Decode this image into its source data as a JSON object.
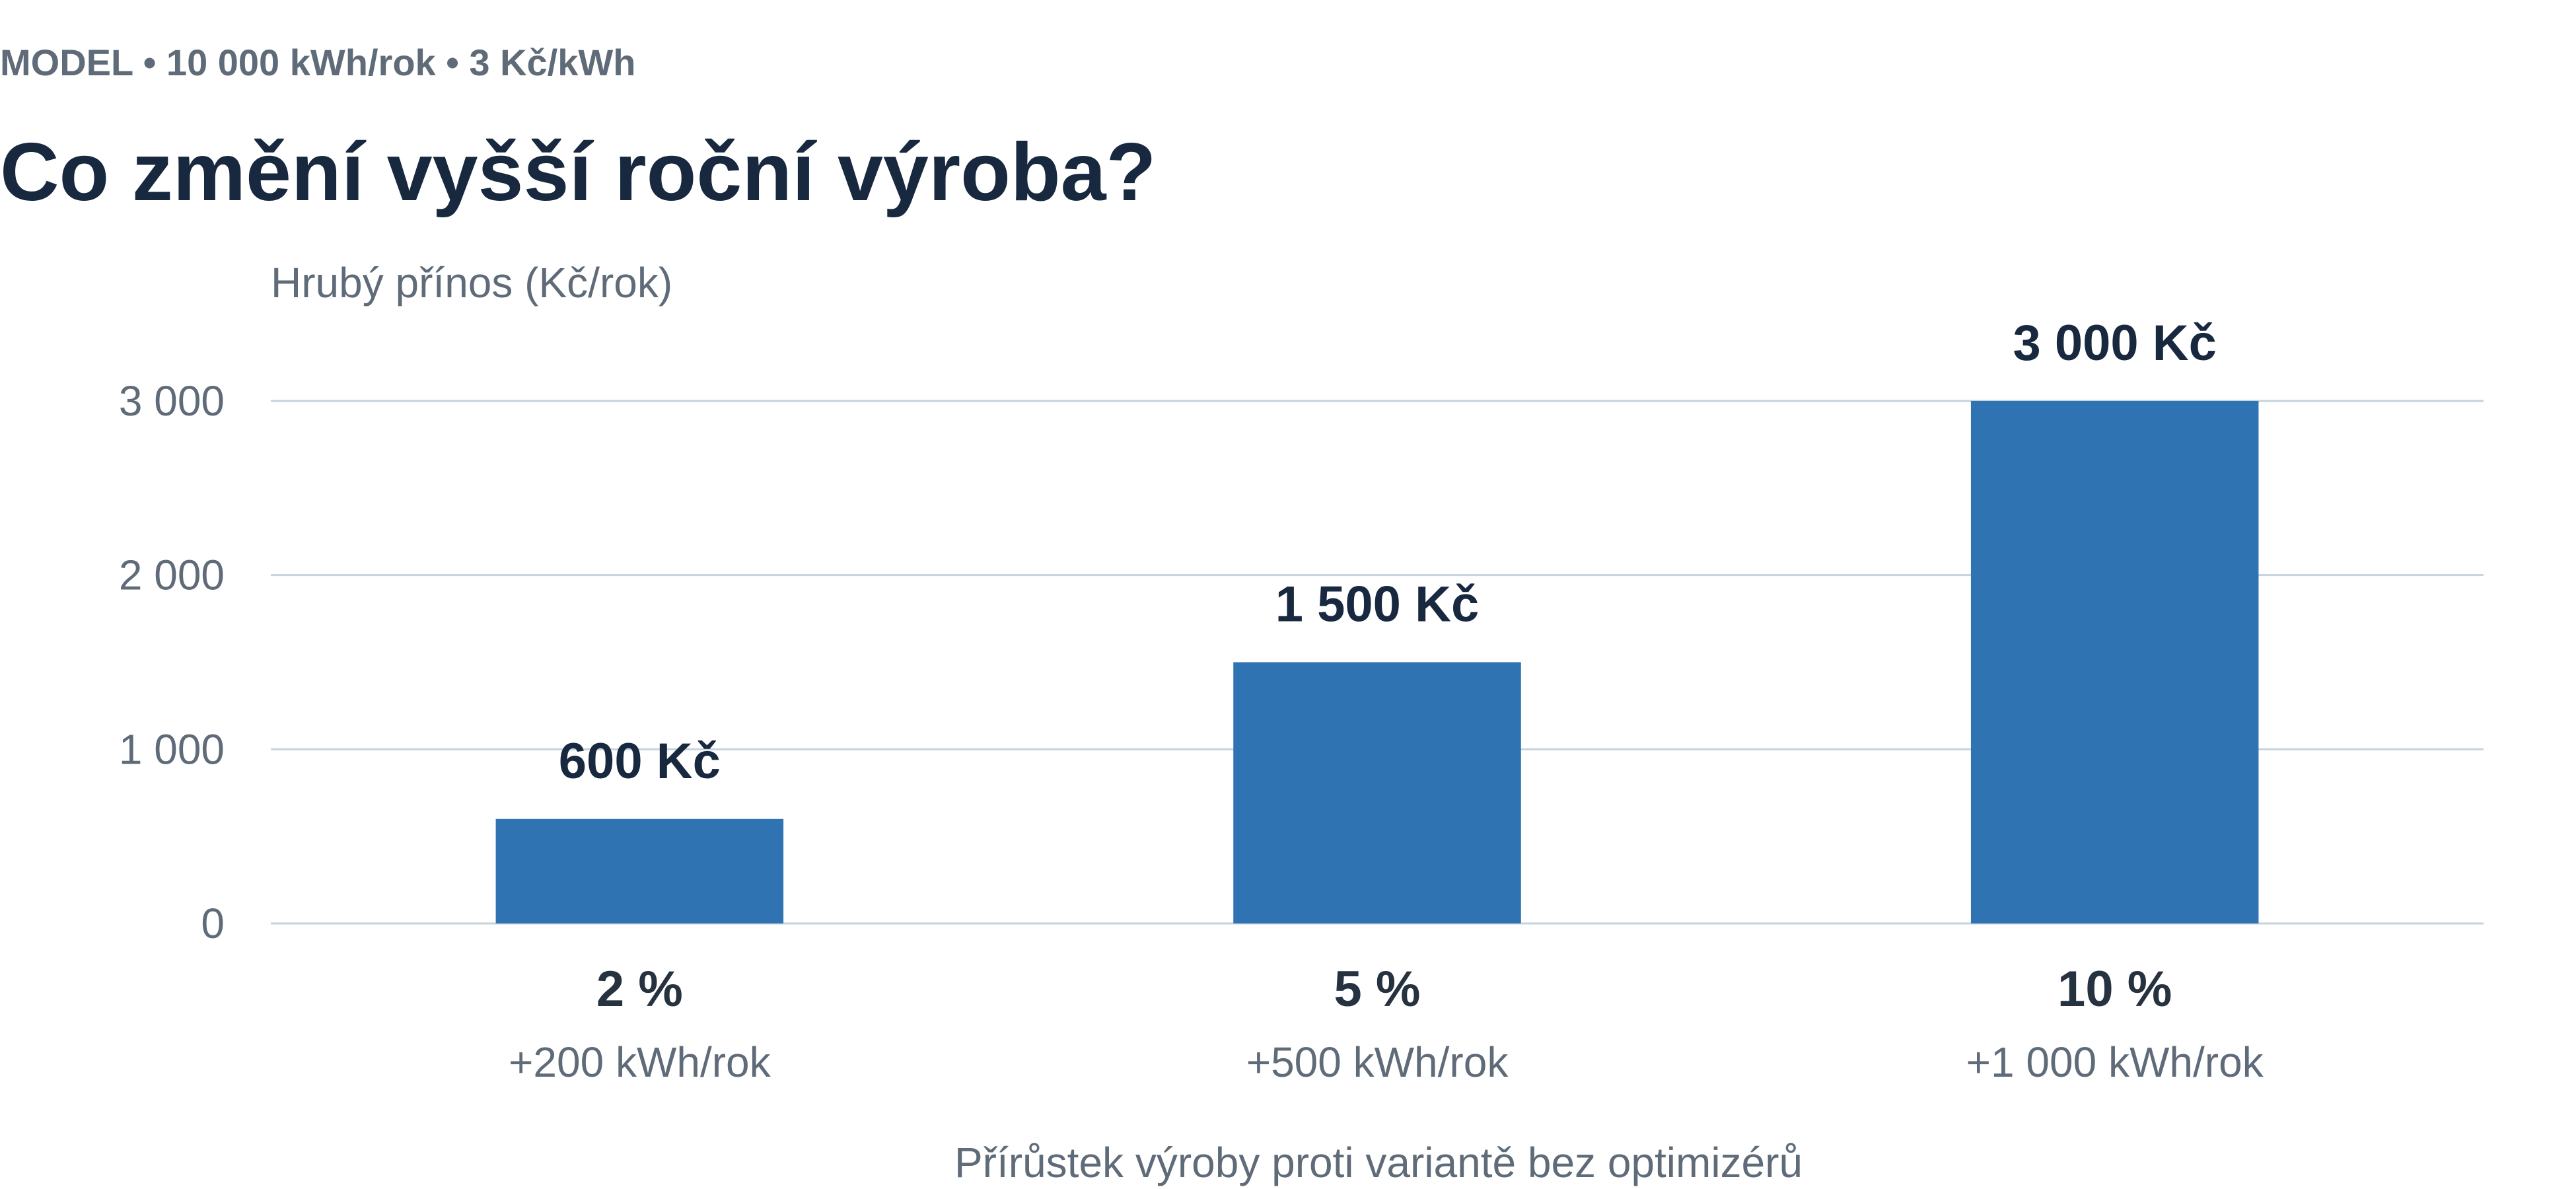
{
  "eyebrow": "MODEL • 10 000 kWh/rok • 3 Kč/kWh",
  "chart_data": {
    "type": "bar",
    "title": "Co změní vyšší roční výroba?",
    "ylabel": "Hrubý přínos (Kč/rok)",
    "xlabel": "Přírůstek výroby proti variantě bez optimizérů",
    "categories": [
      "2 %",
      "5 %",
      "10 %"
    ],
    "category_sublabels": [
      "+200 kWh/rok",
      "+500 kWh/rok",
      "+1 000 kWh/rok"
    ],
    "values": [
      600,
      1500,
      3000
    ],
    "data_labels": [
      "600 Kč",
      "1 500 Kč",
      "3 000 Kč"
    ],
    "yticks": [
      0,
      1000,
      2000,
      3000
    ],
    "ytick_labels": [
      "0",
      "1 000",
      "2 000",
      "3 000"
    ],
    "ylim": [
      0,
      3000
    ],
    "grid": true,
    "legend": "none",
    "colors": {
      "bar": "#2f73b3",
      "title": "#17283f",
      "muted": "#5f6b78",
      "grid": "#c4d3dc"
    }
  }
}
